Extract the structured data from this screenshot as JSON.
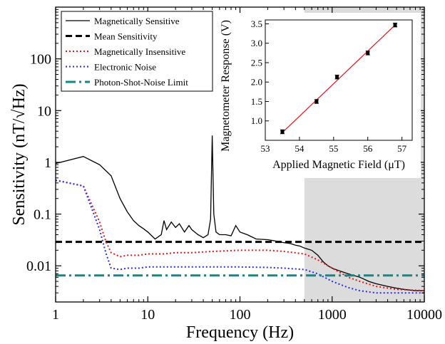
{
  "chart_data": [
    {
      "type": "line",
      "xlabel": "Frequency (Hz)",
      "ylabel": "Sensitivity (nT/√Hz)",
      "xscale": "log",
      "yscale": "log",
      "xlim": [
        1,
        10000
      ],
      "ylim": [
        0.002,
        1000
      ],
      "x_ticks": [
        1,
        10,
        100,
        1000,
        10000
      ],
      "x_tick_labels": [
        "1",
        "10",
        "100",
        "1000",
        "10000"
      ],
      "y_ticks": [
        0.01,
        0.1,
        1,
        10,
        100
      ],
      "y_tick_labels": [
        "0.01",
        "0.1",
        "1",
        "10",
        "100"
      ],
      "shaded_region": {
        "x_from": 500,
        "x_to": 10000,
        "color": "#dcdcdc"
      },
      "legend_position": "top-left",
      "series": [
        {
          "name": "Magnetically Sensitive",
          "color": "#000000",
          "style": "solid",
          "x": [
            1,
            2,
            3,
            4,
            5,
            6,
            7,
            8,
            9,
            10,
            12,
            14,
            15,
            16,
            18,
            20,
            22,
            25,
            28,
            30,
            35,
            40,
            45,
            48,
            50,
            52,
            55,
            60,
            70,
            80,
            90,
            100,
            120,
            150,
            200,
            250,
            300,
            350,
            400,
            450,
            500,
            600,
            700,
            800,
            900,
            1000,
            1200,
            1500,
            2000,
            2500,
            3000,
            4000,
            5000,
            6000,
            8000,
            10000
          ],
          "y": [
            0.95,
            1.3,
            0.9,
            0.55,
            0.2,
            0.11,
            0.075,
            0.06,
            0.052,
            0.045,
            0.033,
            0.04,
            0.075,
            0.05,
            0.07,
            0.055,
            0.065,
            0.045,
            0.06,
            0.05,
            0.04,
            0.035,
            0.04,
            0.08,
            3.3,
            0.1,
            0.045,
            0.04,
            0.04,
            0.038,
            0.06,
            0.045,
            0.04,
            0.033,
            0.032,
            0.03,
            0.028,
            0.027,
            0.025,
            0.024,
            0.022,
            0.02,
            0.016,
            0.012,
            0.01,
            0.009,
            0.008,
            0.007,
            0.006,
            0.005,
            0.0045,
            0.004,
            0.0037,
            0.0035,
            0.0033,
            0.0033
          ]
        },
        {
          "name": "Mean Sensitivity",
          "color": "#000000",
          "style": "dash",
          "x": [
            1,
            10000
          ],
          "y": [
            0.029,
            0.029
          ]
        },
        {
          "name": "Magnetically Insensitive",
          "color": "#e8141a",
          "style": "dot",
          "x": [
            1,
            2,
            3,
            3.5,
            4,
            5,
            6,
            8,
            10,
            15,
            20,
            30,
            50,
            100,
            200,
            300,
            500,
            700,
            1000,
            1500,
            2000,
            3000,
            5000,
            10000
          ],
          "y": [
            0.45,
            0.35,
            0.07,
            0.03,
            0.018,
            0.015,
            0.016,
            0.016,
            0.017,
            0.017,
            0.018,
            0.018,
            0.019,
            0.02,
            0.02,
            0.019,
            0.017,
            0.013,
            0.009,
            0.006,
            0.005,
            0.004,
            0.0035,
            0.0033
          ]
        },
        {
          "name": "Electronic Noise",
          "color": "#2a2ae6",
          "style": "dot",
          "x": [
            1,
            2,
            3,
            3.5,
            4,
            5,
            6,
            8,
            10,
            15,
            20,
            30,
            50,
            100,
            200,
            300,
            500,
            700,
            1000,
            1500,
            2000,
            3000,
            5000,
            10000
          ],
          "y": [
            0.45,
            0.35,
            0.05,
            0.018,
            0.009,
            0.0085,
            0.009,
            0.009,
            0.0095,
            0.0095,
            0.0095,
            0.0095,
            0.0095,
            0.0095,
            0.0093,
            0.009,
            0.0085,
            0.007,
            0.005,
            0.0038,
            0.0033,
            0.003,
            0.003,
            0.003
          ]
        },
        {
          "name": "Photon-Shot-Noise Limit",
          "color": "#0f8a8a",
          "style": "dashdot",
          "x": [
            1,
            10000
          ],
          "y": [
            0.0065,
            0.0065
          ]
        }
      ]
    },
    {
      "type": "scatter",
      "xlabel": "Applied Magnetic Field (μT)",
      "ylabel": "Magnetometer Response (V)",
      "xlim": [
        53,
        57.3
      ],
      "ylim": [
        0.5,
        3.6
      ],
      "x_ticks": [
        53,
        54,
        55,
        56,
        57
      ],
      "x_tick_labels": [
        "53",
        "54",
        "55",
        "56",
        "57"
      ],
      "y_ticks": [
        1.0,
        1.5,
        2.0,
        2.5,
        3.0,
        3.5
      ],
      "y_tick_labels": [
        "1.0",
        "1.5",
        "2.0",
        "2.5",
        "3.0",
        "3.5"
      ],
      "points": {
        "x": [
          53.5,
          54.5,
          55.1,
          56.0,
          56.8
        ],
        "y": [
          0.72,
          1.5,
          2.13,
          2.75,
          3.47
        ],
        "yerr": [
          0.05,
          0.05,
          0.05,
          0.05,
          0.05
        ],
        "color": "#000000"
      },
      "fit": {
        "x": [
          53.5,
          56.8
        ],
        "y": [
          0.7,
          3.47
        ],
        "color": "#e8141a"
      }
    }
  ]
}
